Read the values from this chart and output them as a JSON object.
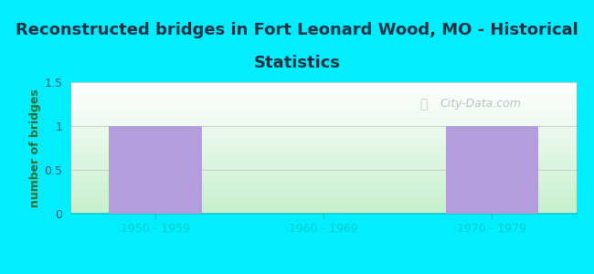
{
  "title_line1": "Reconstructed bridges in Fort Leonard Wood, MO - Historical",
  "title_line2": "Statistics",
  "categories": [
    "1950 - 1959",
    "1960 - 1969",
    "1970 - 1979"
  ],
  "values": [
    1,
    0,
    1
  ],
  "bar_color": "#b39ddb",
  "ylabel": "number of bridges",
  "ylim": [
    0,
    1.5
  ],
  "yticks": [
    0,
    0.5,
    1,
    1.5
  ],
  "bg_outer": "#00eeff",
  "bg_plot_topleft": "#e8f5e9",
  "bg_plot_topright": "#ffffff",
  "bg_plot_bottomleft": "#ccf5dd",
  "bg_plot_bottomright": "#e0f0f0",
  "title_fontsize": 13,
  "title_color": "#1a3344",
  "label_fontsize": 9,
  "ylabel_color": "#2d6a2d",
  "tick_fontsize": 9,
  "tick_color": "#3a5a6a",
  "watermark": "City-Data.com",
  "grid_color": "#cccccc",
  "border_color": "#00cccc"
}
